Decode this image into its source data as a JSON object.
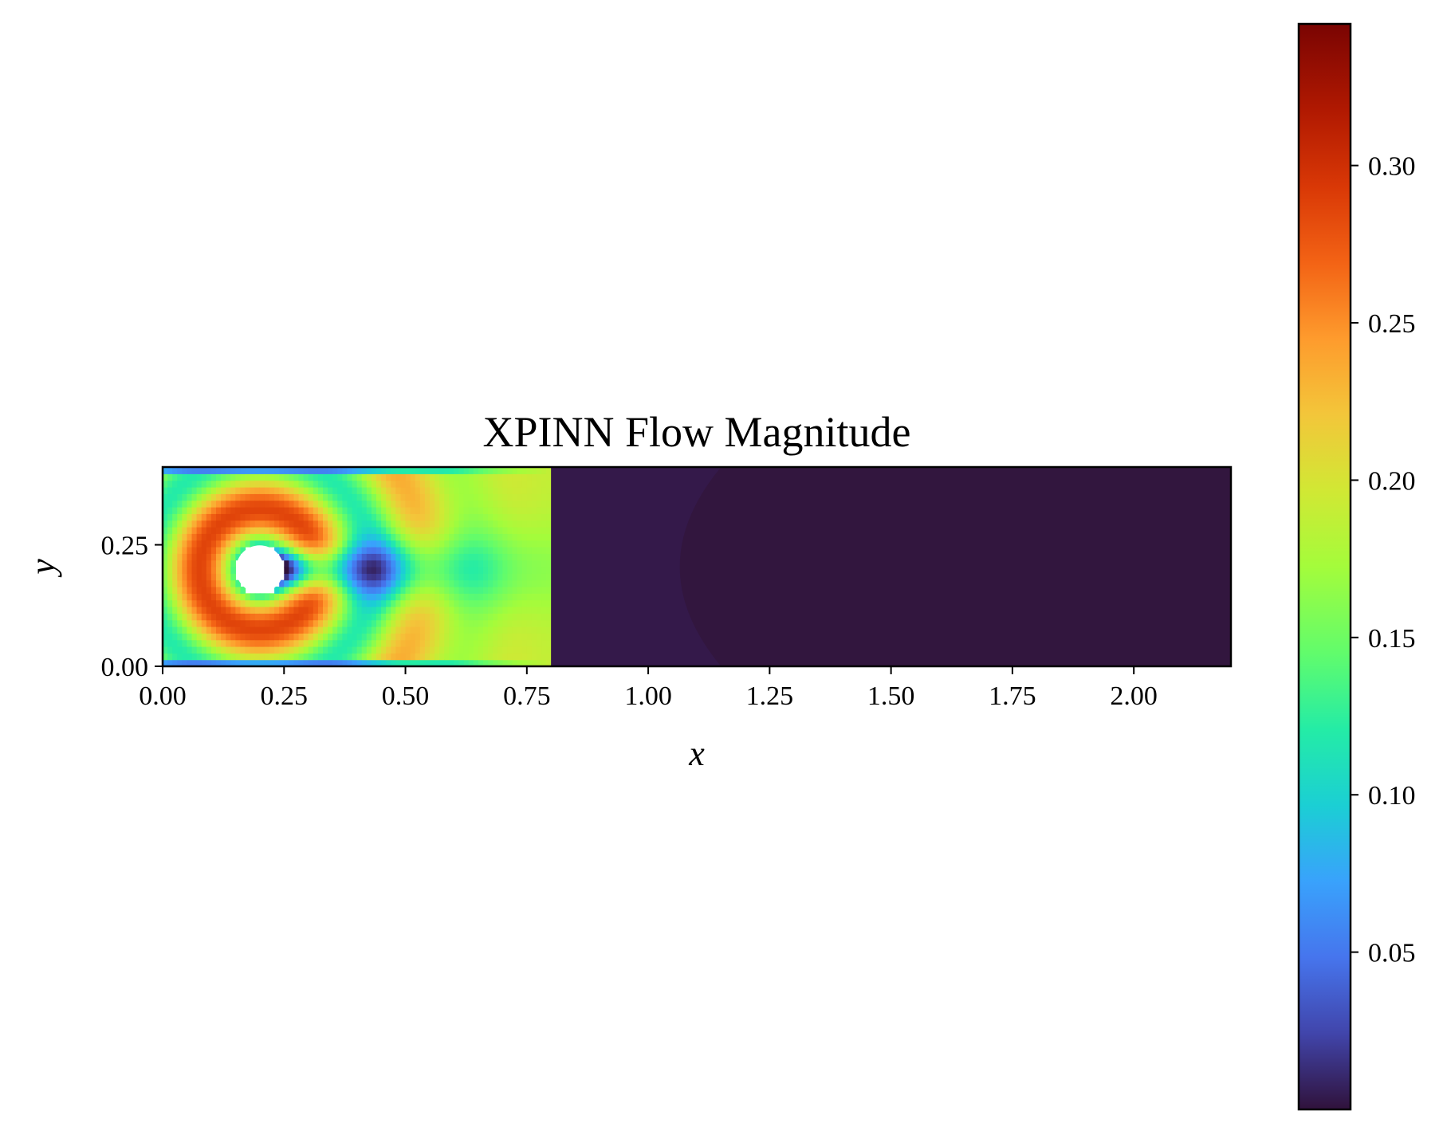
{
  "chart_data": {
    "type": "heatmap",
    "title": "XPINN Flow Magnitude",
    "xlabel": "x",
    "ylabel": "y",
    "xlim": [
      0.0,
      2.2
    ],
    "ylim": [
      0.0,
      0.41
    ],
    "x_ticks": [
      "0.00",
      "0.25",
      "0.50",
      "0.75",
      "1.00",
      "1.25",
      "1.50",
      "1.75",
      "2.00"
    ],
    "y_ticks": [
      "0.00",
      "0.25"
    ],
    "colormap": "turbo",
    "colorbar": {
      "range": [
        0.0,
        0.345
      ],
      "ticks": [
        "0.05",
        "0.10",
        "0.15",
        "0.20",
        "0.25",
        "0.30"
      ]
    },
    "subdomain_interface_x": 0.8,
    "cylinder": {
      "center": [
        0.2,
        0.2
      ],
      "radius": 0.05
    },
    "field_description": "Velocity magnitude; left subdomain (x < 0.8) shows flow around the cylinder with peak near 0.34, right subdomain (x > 0.8) is near zero"
  }
}
